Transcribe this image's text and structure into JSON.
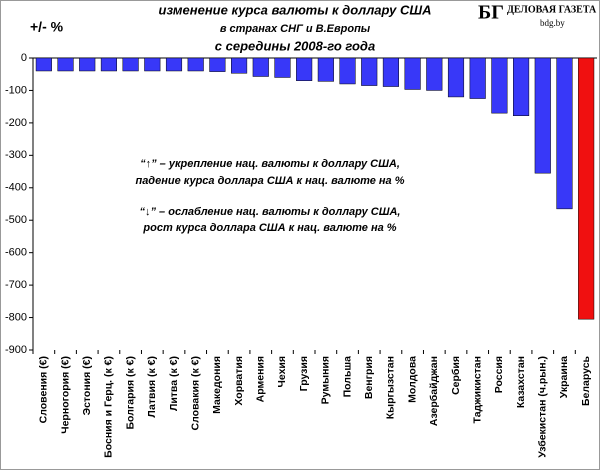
{
  "chart_data": {
    "type": "bar",
    "title": "изменение  курса валюты к доллару США",
    "subtitle": "в странах СНГ и В.Европы",
    "subtitle2": "с середины 2008-го года",
    "y_label": "+/- %",
    "annotations": [
      "“↑” – укрепление нац. валюты к доллару США,",
      "падение курса доллара США к нац. валюте на %",
      "“↓” – ослабление нац. валюты к доллару США,",
      "рост курса доллара США к нац. валюте на %"
    ],
    "logo": {
      "mark": "БГ",
      "name": "ДЕЛОВАЯ ГАЗЕТА",
      "site": "bdg.by"
    },
    "categories": [
      "Словения (€)",
      "Черногория (€)",
      "Эстония (€)",
      "Босния и Герц. (к €)",
      "Болгария (к €)",
      "Латвия (к €)",
      "Литва (к €)",
      "Словакия (к €)",
      "Македония",
      "Хорватия",
      "Армения",
      "Чехия",
      "Грузия",
      "Румыния",
      "Польша",
      "Венгрия",
      "Кыргызстан",
      "Молдова",
      "Азербайджан",
      "Сербия",
      "Таджикистан",
      "Россия",
      "Казахстан",
      "Узбекистан (ч.рын.)",
      "Украина",
      "Беларусь"
    ],
    "values": [
      -40,
      -40,
      -40,
      -40,
      -40,
      -40,
      -40,
      -40,
      -42,
      -47,
      -57,
      -60,
      -70,
      -72,
      -80,
      -85,
      -88,
      -97,
      -100,
      -120,
      -125,
      -170,
      -178,
      -355,
      -465,
      -805
    ],
    "colors": [
      "#3838f8",
      "#3838f8",
      "#3838f8",
      "#3838f8",
      "#3838f8",
      "#3838f8",
      "#3838f8",
      "#3838f8",
      "#3838f8",
      "#3838f8",
      "#3838f8",
      "#3838f8",
      "#3838f8",
      "#3838f8",
      "#3838f8",
      "#3838f8",
      "#3838f8",
      "#3838f8",
      "#3838f8",
      "#3838f8",
      "#3838f8",
      "#3838f8",
      "#3838f8",
      "#3838f8",
      "#3838f8",
      "#f01010"
    ],
    "ylim": [
      0,
      -900
    ],
    "yticks": [
      0,
      -100,
      -200,
      -300,
      -400,
      -500,
      -600,
      -700,
      -800,
      -900
    ]
  }
}
